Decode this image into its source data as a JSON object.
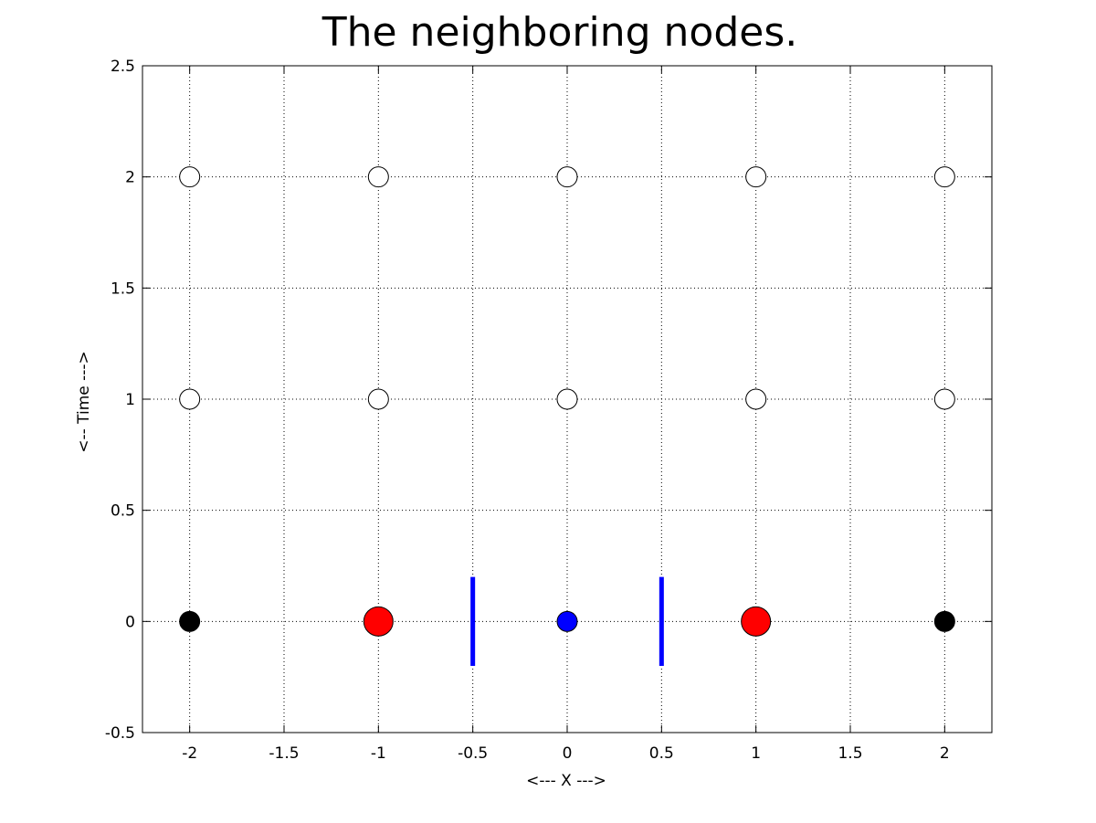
{
  "chart_data": {
    "type": "scatter",
    "title": "The neighboring nodes.",
    "xlabel": "<--- X --->",
    "ylabel": "<-- Time --->",
    "xlim": [
      -2.25,
      2.25
    ],
    "ylim": [
      -0.5,
      2.5
    ],
    "xticks": [
      "-2",
      "-1.5",
      "-1",
      "-0.5",
      "0",
      "0.5",
      "1",
      "1.5",
      "2"
    ],
    "yticks": [
      "-0.5",
      "0",
      "0.5",
      "1",
      "1.5",
      "2",
      "2.5"
    ],
    "grid": true,
    "series": [
      {
        "marker": "open-circle",
        "color": "#ffffff",
        "edge_color": "#000000",
        "size": "medium",
        "points": [
          [
            -2,
            1
          ],
          [
            -1,
            1
          ],
          [
            0,
            1
          ],
          [
            1,
            1
          ],
          [
            2,
            1
          ],
          [
            -2,
            2
          ],
          [
            -1,
            2
          ],
          [
            0,
            2
          ],
          [
            1,
            2
          ],
          [
            2,
            2
          ]
        ]
      },
      {
        "marker": "filled-circle",
        "color": "#000000",
        "edge_color": "#000000",
        "size": "medium",
        "points": [
          [
            -2,
            0
          ],
          [
            2,
            0
          ]
        ]
      },
      {
        "marker": "filled-circle",
        "color": "#ff0000",
        "edge_color": "#000000",
        "size": "large",
        "points": [
          [
            -1,
            0
          ],
          [
            1,
            0
          ]
        ]
      },
      {
        "marker": "filled-circle",
        "color": "#0000ff",
        "edge_color": "#000000",
        "size": "medium",
        "points": [
          [
            0,
            0
          ]
        ]
      }
    ],
    "segments": [
      {
        "color": "#0000ff",
        "x": -0.5,
        "y": [
          -0.2,
          0.2
        ]
      },
      {
        "color": "#0000ff",
        "x": 0.5,
        "y": [
          -0.2,
          0.2
        ]
      }
    ]
  }
}
